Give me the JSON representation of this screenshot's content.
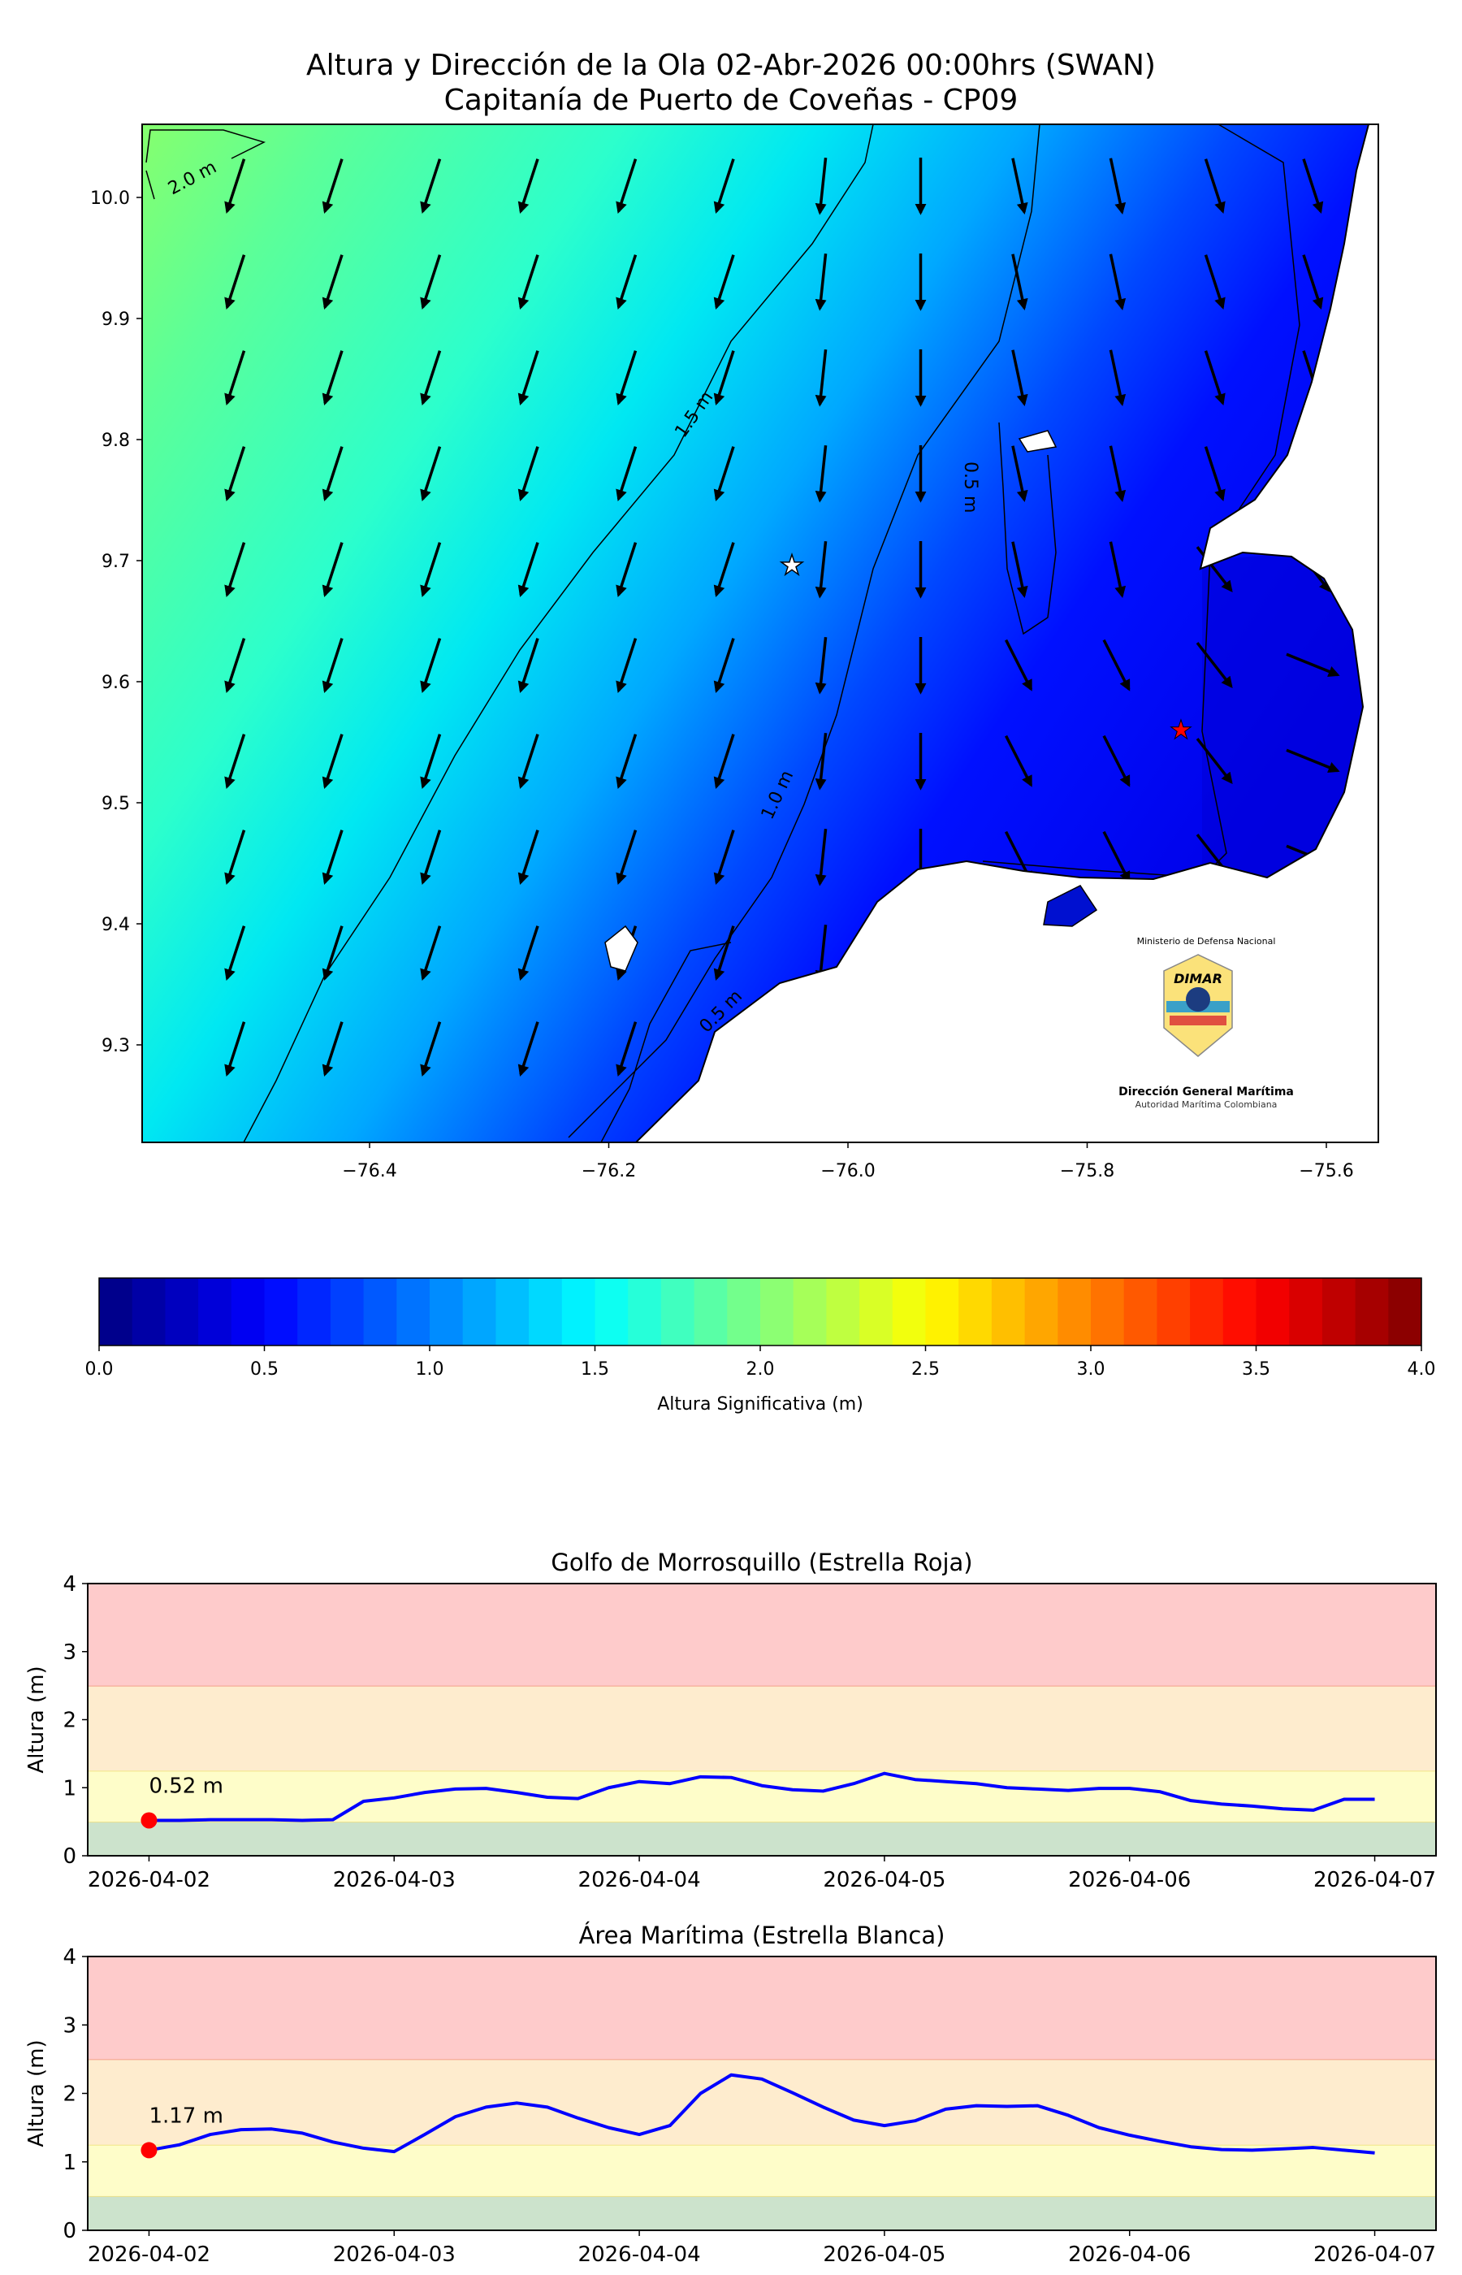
{
  "map": {
    "title_line1": "Altura y Dirección de la Ola 02-Abr-2026 00:00hrs (SWAN)",
    "title_line2": "Capitanía de Puerto de Coveñas - CP09",
    "lon_ticks": [
      "−76.4",
      "−76.2",
      "−76.0",
      "−75.8",
      "−75.6"
    ],
    "lat_ticks": [
      "10.0",
      "9.9",
      "9.8",
      "9.7",
      "9.6",
      "9.5",
      "9.4",
      "9.3"
    ],
    "contour_labels": [
      "2.0 m",
      "1.5 m",
      "1.0 m",
      "0.5 m",
      "0.5 m"
    ],
    "markers": {
      "white_star": "Área Marítima",
      "red_star": "Golfo de Morrosquillo"
    },
    "logo": {
      "top_text": "Ministerio de Defensa Nacional",
      "brand": "DIMAR",
      "name": "Dirección General Marítima",
      "subtitle": "Autoridad Marítima Colombiana"
    }
  },
  "colorbar": {
    "min": 0,
    "max": 4,
    "step": 0.1,
    "ticks": [
      "0.0",
      "0.5",
      "1.0",
      "1.5",
      "2.0",
      "2.5",
      "3.0",
      "3.5",
      "4.0"
    ],
    "label": "Altura Significativa (m)",
    "colormap": "jet"
  },
  "chart_data": [
    {
      "type": "line",
      "title": "Golfo de Morrosquillo (Estrella Roja)",
      "ylabel": "Altura (m)",
      "xlabel": "",
      "ylim": [
        0,
        4
      ],
      "yticks": [
        "0",
        "1",
        "2",
        "3",
        "4"
      ],
      "xticks": [
        "2026-04-02",
        "2026-04-03",
        "2026-04-04",
        "2026-04-05",
        "2026-04-06",
        "2026-04-07"
      ],
      "x_days_from_start": [
        0,
        0.125,
        0.25,
        0.375,
        0.5,
        0.625,
        0.75,
        0.875,
        1,
        1.125,
        1.25,
        1.375,
        1.5,
        1.625,
        1.75,
        1.875,
        2,
        2.125,
        2.25,
        2.375,
        2.5,
        2.625,
        2.75,
        2.875,
        3,
        3.125,
        3.25,
        3.375,
        3.5,
        3.625,
        3.75,
        3.875,
        4,
        4.125,
        4.25,
        4.375,
        4.5,
        4.625,
        4.75,
        4.875,
        5
      ],
      "values": [
        0.52,
        0.52,
        0.53,
        0.53,
        0.53,
        0.52,
        0.53,
        0.8,
        0.85,
        0.93,
        0.98,
        0.99,
        0.93,
        0.86,
        0.84,
        1.0,
        1.09,
        1.06,
        1.16,
        1.15,
        1.03,
        0.97,
        0.95,
        1.06,
        1.21,
        1.12,
        1.09,
        1.06,
        1.0,
        0.98,
        0.96,
        0.99,
        0.99,
        0.94,
        0.81,
        0.76,
        0.73,
        0.69,
        0.67,
        0.83,
        0.83
      ],
      "current_value": 0.52,
      "current_label": "0.52 m",
      "bands": [
        {
          "from": 0,
          "to": 0.5,
          "color": "#cce3cc",
          "edge": "#e8e08a"
        },
        {
          "from": 0.5,
          "to": 1.25,
          "color": "#fefdc9",
          "edge": "#f3e68a"
        },
        {
          "from": 1.25,
          "to": 2.5,
          "color": "#feecce",
          "edge": "#f4a08a"
        },
        {
          "from": 2.5,
          "to": 4,
          "color": "#fecbcb",
          "edge": "#fecbcb"
        }
      ],
      "line_color": "#0000ff",
      "marker_color": "#ff0000"
    },
    {
      "type": "line",
      "title": "Área Marítima (Estrella Blanca)",
      "ylabel": "Altura (m)",
      "xlabel": "",
      "ylim": [
        0,
        4
      ],
      "yticks": [
        "0",
        "1",
        "2",
        "3",
        "4"
      ],
      "xticks": [
        "2026-04-02",
        "2026-04-03",
        "2026-04-04",
        "2026-04-05",
        "2026-04-06",
        "2026-04-07"
      ],
      "x_days_from_start": [
        0,
        0.125,
        0.25,
        0.375,
        0.5,
        0.625,
        0.75,
        0.875,
        1,
        1.125,
        1.25,
        1.375,
        1.5,
        1.625,
        1.75,
        1.875,
        2,
        2.125,
        2.25,
        2.375,
        2.5,
        2.625,
        2.75,
        2.875,
        3,
        3.125,
        3.25,
        3.375,
        3.5,
        3.625,
        3.75,
        3.875,
        4,
        4.125,
        4.25,
        4.375,
        4.5,
        4.625,
        4.75,
        4.875,
        5
      ],
      "values": [
        1.17,
        1.25,
        1.4,
        1.47,
        1.48,
        1.42,
        1.29,
        1.2,
        1.15,
        1.4,
        1.66,
        1.8,
        1.86,
        1.8,
        1.64,
        1.5,
        1.4,
        1.53,
        2.0,
        2.27,
        2.21,
        2.01,
        1.8,
        1.61,
        1.53,
        1.6,
        1.77,
        1.82,
        1.81,
        1.82,
        1.68,
        1.5,
        1.39,
        1.3,
        1.22,
        1.18,
        1.17,
        1.19,
        1.21,
        1.17,
        1.13
      ],
      "current_value": 1.17,
      "current_label": "1.17 m",
      "bands": [
        {
          "from": 0,
          "to": 0.5,
          "color": "#cce3cc",
          "edge": "#e8e08a"
        },
        {
          "from": 0.5,
          "to": 1.25,
          "color": "#fefdc9",
          "edge": "#f3e68a"
        },
        {
          "from": 1.25,
          "to": 2.5,
          "color": "#feecce",
          "edge": "#f4a08a"
        },
        {
          "from": 2.5,
          "to": 4,
          "color": "#fecbcb",
          "edge": "#fecbcb"
        }
      ],
      "line_color": "#0000ff",
      "marker_color": "#ff0000"
    }
  ]
}
